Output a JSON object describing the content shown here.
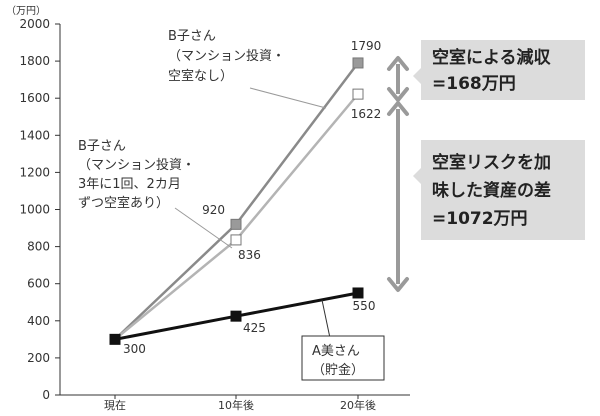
{
  "chart_data": {
    "type": "line",
    "unit_label": "（万円）",
    "categories": [
      "現在",
      "10年後",
      "20年後"
    ],
    "ylim": [
      0,
      2000
    ],
    "yticks": [
      "0",
      "200",
      "400",
      "600",
      "800",
      "1000",
      "1200",
      "1400",
      "1600",
      "1800",
      "2000"
    ],
    "series": [
      {
        "key": "b_no_vacancy",
        "values": [
          300,
          920,
          1790
        ],
        "labels": [
          "",
          "920",
          "1790"
        ],
        "color": "#8a8a8a",
        "marker_fill": "#9a9a9a"
      },
      {
        "key": "b_vacancy",
        "values": [
          300,
          836,
          1622
        ],
        "labels": [
          "",
          "836",
          "1622"
        ],
        "color": "#b4b4b4",
        "marker_fill": "#ffffff"
      },
      {
        "key": "a_savings",
        "values": [
          300,
          425,
          550
        ],
        "labels": [
          "300",
          "425",
          "550"
        ],
        "color": "#111111",
        "marker_fill": "#111111"
      }
    ],
    "annotations": {
      "b_no_vacancy_label": [
        "B子さん",
        "（マンション投資・",
        "空室なし）"
      ],
      "b_vacancy_label": [
        "B子さん",
        "（マンション投資・",
        "3年に1回、2カ月",
        "ずつ空室あり）"
      ],
      "a_label": [
        "A美さん",
        "（貯金）"
      ],
      "callout_top": [
        "空室による減収",
        "=168万円"
      ],
      "callout_bottom": [
        "空室リスクを加",
        "味した資産の差",
        "=1072万円"
      ]
    },
    "grid": false
  }
}
